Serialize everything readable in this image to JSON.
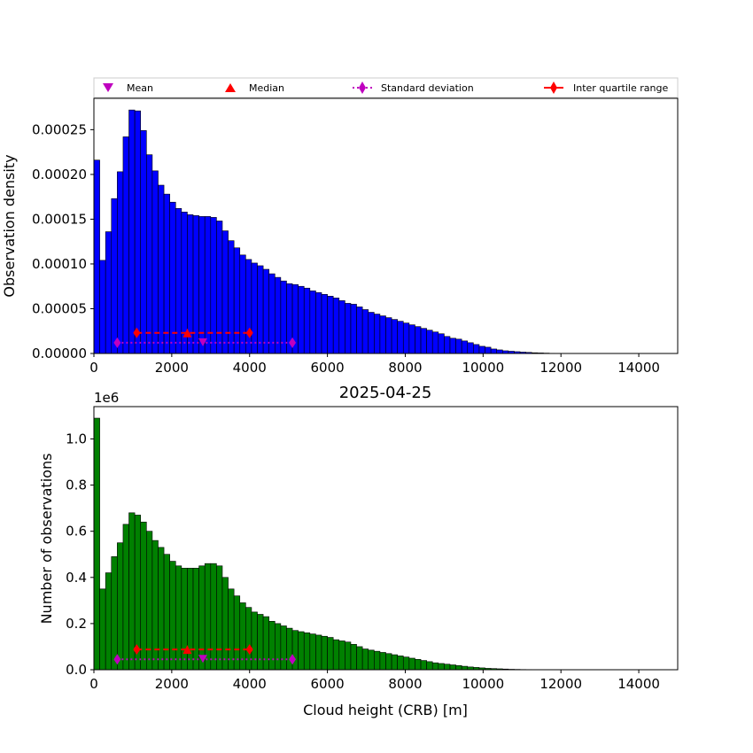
{
  "legend": {
    "mean": "Mean",
    "median": "Median",
    "std": "Standard deviation",
    "iqr": "Inter quartile range"
  },
  "colors": {
    "top_bars": "#0000ff",
    "bottom_bars": "#008000",
    "mean": "#bf00bf",
    "median": "#ff0000"
  },
  "chart_data": [
    {
      "type": "bar",
      "title": "",
      "xlabel": "",
      "ylabel": "Observation density",
      "xlim": [
        0,
        15000
      ],
      "ylim": [
        0,
        0.000285
      ],
      "bin_width": 150,
      "xticks": [
        0,
        2000,
        4000,
        6000,
        8000,
        10000,
        12000,
        14000
      ],
      "xtick_labels": [
        "0",
        "2000",
        "4000",
        "6000",
        "8000",
        "10000",
        "12000",
        "14000"
      ],
      "yticks": [
        0,
        5e-05,
        0.0001,
        0.00015,
        0.0002,
        0.00025
      ],
      "ytick_labels": [
        "0.00000",
        "0.00005",
        "0.00010",
        "0.00015",
        "0.00020",
        "0.00025"
      ],
      "values": [
        0.000216,
        0.000104,
        0.000136,
        0.000173,
        0.000203,
        0.000242,
        0.000272,
        0.000271,
        0.000249,
        0.000222,
        0.000204,
        0.000188,
        0.000178,
        0.000169,
        0.000162,
        0.000158,
        0.000155,
        0.000154,
        0.000153,
        0.000153,
        0.000152,
        0.000148,
        0.000137,
        0.000126,
        0.000118,
        0.00011,
        0.000105,
        0.000101,
        9.8e-05,
        9.4e-05,
        8.9e-05,
        8.5e-05,
        8.1e-05,
        7.8e-05,
        7.7e-05,
        7.5e-05,
        7.3e-05,
        7e-05,
        6.8e-05,
        6.6e-05,
        6.4e-05,
        6.2e-05,
        5.9e-05,
        5.6e-05,
        5.5e-05,
        5.2e-05,
        4.9e-05,
        4.6e-05,
        4.4e-05,
        4.2e-05,
        4e-05,
        3.8e-05,
        3.6e-05,
        3.4e-05,
        3.2e-05,
        3e-05,
        2.8e-05,
        2.6e-05,
        2.4e-05,
        2.2e-05,
        1.9e-05,
        1.7e-05,
        1.6e-05,
        1.4e-05,
        1.2e-05,
        1e-05,
        8e-06,
        7e-06,
        5e-06,
        4e-06,
        3e-06,
        2.5e-06,
        2e-06,
        1.5e-06,
        1.2e-06,
        8e-07,
        6e-07,
        4e-07,
        2e-07,
        1e-07,
        1e-07
      ],
      "stats": {
        "mean": {
          "x": 2800,
          "y": 1.2e-05
        },
        "std": {
          "x": [
            600,
            5100
          ],
          "y": 1.2e-05
        },
        "median": {
          "x": 2400,
          "y": 2.3e-05
        },
        "iqr": {
          "x": [
            1100,
            4000
          ],
          "y": 2.3e-05
        }
      }
    },
    {
      "type": "bar",
      "title": "2025-04-25",
      "xlabel": "Cloud height (CRB) [m]",
      "ylabel": "Number of observations",
      "y_offset_label": "1e6",
      "xlim": [
        0,
        15000
      ],
      "ylim": [
        0,
        1.14
      ],
      "bin_width": 150,
      "xticks": [
        0,
        2000,
        4000,
        6000,
        8000,
        10000,
        12000,
        14000
      ],
      "xtick_labels": [
        "0",
        "2000",
        "4000",
        "6000",
        "8000",
        "10000",
        "12000",
        "14000"
      ],
      "yticks": [
        0,
        0.2,
        0.4,
        0.6,
        0.8,
        1.0
      ],
      "ytick_labels": [
        "0.0",
        "0.2",
        "0.4",
        "0.6",
        "0.8",
        "1.0"
      ],
      "values": [
        1.09,
        0.35,
        0.42,
        0.49,
        0.55,
        0.63,
        0.68,
        0.67,
        0.64,
        0.6,
        0.56,
        0.53,
        0.5,
        0.47,
        0.45,
        0.44,
        0.44,
        0.44,
        0.45,
        0.46,
        0.46,
        0.45,
        0.4,
        0.35,
        0.32,
        0.29,
        0.27,
        0.25,
        0.24,
        0.23,
        0.21,
        0.2,
        0.19,
        0.18,
        0.17,
        0.165,
        0.16,
        0.155,
        0.15,
        0.145,
        0.14,
        0.13,
        0.125,
        0.12,
        0.11,
        0.1,
        0.09,
        0.085,
        0.08,
        0.075,
        0.07,
        0.065,
        0.06,
        0.055,
        0.05,
        0.045,
        0.04,
        0.035,
        0.03,
        0.027,
        0.024,
        0.021,
        0.018,
        0.015,
        0.012,
        0.01,
        0.008,
        0.006,
        0.005,
        0.004,
        0.003,
        0.002,
        0.0015,
        0.001,
        0.0008,
        0.0005,
        0.0003,
        0.0002,
        0.0001
      ],
      "stats": {
        "mean": {
          "x": 2800,
          "y": 0.045
        },
        "std": {
          "x": [
            600,
            5100
          ],
          "y": 0.045
        },
        "median": {
          "x": 2400,
          "y": 0.088
        },
        "iqr": {
          "x": [
            1100,
            4000
          ],
          "y": 0.088
        }
      }
    }
  ]
}
